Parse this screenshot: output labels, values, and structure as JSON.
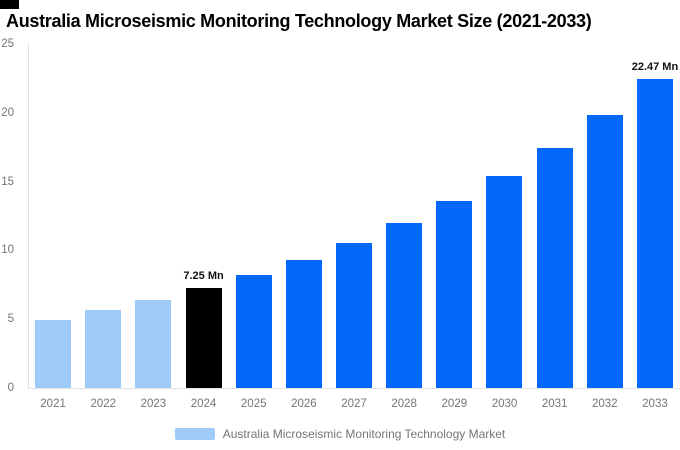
{
  "header": {
    "title": "Australia Microseismic Monitoring Technology Market Size (2021-2033)"
  },
  "legend": {
    "label": "Australia Microseismic Monitoring Technology Market",
    "swatch_color": "#9fcbfa",
    "position": "bottom-center"
  },
  "chart_data": {
    "type": "bar",
    "title": "Australia Microseismic Monitoring Technology Market Size (2021-2033)",
    "xlabel": "",
    "ylabel": "",
    "categories": [
      "2021",
      "2022",
      "2023",
      "2024",
      "2025",
      "2026",
      "2027",
      "2028",
      "2029",
      "2030",
      "2031",
      "2032",
      "2033"
    ],
    "series": [
      {
        "name": "Australia Microseismic Monitoring Technology Market",
        "values": [
          4.97,
          5.64,
          6.39,
          7.25,
          8.22,
          9.32,
          10.57,
          11.99,
          13.59,
          15.41,
          17.48,
          19.82,
          22.47
        ]
      }
    ],
    "bar_colors": [
      "#9fcbfa",
      "#9fcbfa",
      "#9fcbfa",
      "#000000",
      "#0568fc",
      "#0568fc",
      "#0568fc",
      "#0568fc",
      "#0568fc",
      "#0568fc",
      "#0568fc",
      "#0568fc",
      "#0568fc"
    ],
    "color_roles": {
      "historical": "#9fcbfa",
      "base_year": "#000000",
      "forecast": "#0568fc"
    },
    "annotations": [
      {
        "category": "2024",
        "text": "7.25 Mn"
      },
      {
        "category": "2033",
        "text": "22.47 Mn"
      }
    ],
    "ylim": [
      0,
      25
    ],
    "yticks": [
      0,
      5,
      10,
      15,
      20,
      25
    ],
    "grid": false,
    "legend_position": "bottom-center",
    "axis_color": "#e2e2e2",
    "tick_label_color": "#757575"
  }
}
